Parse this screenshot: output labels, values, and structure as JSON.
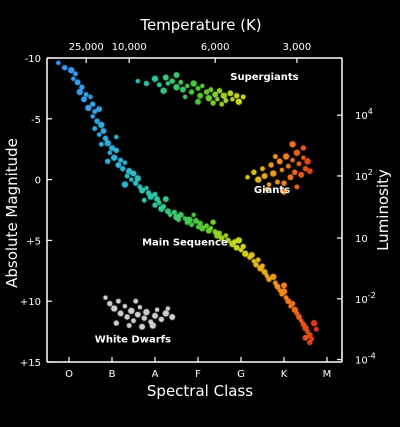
{
  "chart_data": {
    "type": "scatter",
    "title": "",
    "top_axis": {
      "label": "Temperature (K)",
      "ticks": [
        {
          "label": "25,000",
          "class_pos": 0.4
        },
        {
          "label": "10,000",
          "class_pos": 1.4
        },
        {
          "label": "6,000",
          "class_pos": 3.4
        },
        {
          "label": "3,000",
          "class_pos": 5.3
        }
      ]
    },
    "bottom_axis": {
      "label": "Spectral Class",
      "categories": [
        "O",
        "B",
        "A",
        "F",
        "G",
        "K",
        "M"
      ]
    },
    "left_axis": {
      "label": "Absolute Magnitude",
      "range": [
        -10,
        15
      ],
      "inverted": true,
      "ticks": [
        {
          "label": "-10",
          "value": -10
        },
        {
          "label": "-5",
          "value": -5
        },
        {
          "label": "0",
          "value": 0
        },
        {
          "label": "+5",
          "value": 5
        },
        {
          "label": "+10",
          "value": 10
        },
        {
          "label": "+15",
          "value": 15
        }
      ]
    },
    "right_axis": {
      "label": "Luminosity",
      "ticks": [
        {
          "base": "10",
          "exp": "4",
          "mag": -5.3
        },
        {
          "base": "10",
          "exp": "2",
          "mag": -0.3
        },
        {
          "base": "10",
          "exp": "",
          "mag": 4.8
        },
        {
          "base": "10",
          "exp": "-2",
          "mag": 9.8
        },
        {
          "base": "10",
          "exp": "-4",
          "mag": 14.8
        }
      ]
    },
    "grid": false,
    "legend": "none",
    "annotations": [
      {
        "text": "Supergiants",
        "x": 3.75,
        "y": -8.2
      },
      {
        "text": "Giants",
        "x": 4.3,
        "y": 1.1
      },
      {
        "text": "Main Sequence",
        "x": 1.7,
        "y": 5.4
      },
      {
        "text": "White Dwarfs",
        "x": 0.6,
        "y": 13.4
      }
    ],
    "class_colors": [
      "#3aa0ff",
      "#33b7e6",
      "#2fd0a8",
      "#4fd13a",
      "#e0e01a",
      "#ff8a1a",
      "#e0201a"
    ],
    "white_dwarf_color": "#d8d8d8",
    "groups": [
      {
        "name": "Main Sequence",
        "points": [
          [
            -0.25,
            -9.6
          ],
          [
            -0.1,
            -9.2
          ],
          [
            0.05,
            -9.0
          ],
          [
            0.15,
            -8.7
          ],
          [
            0.2,
            -8.0
          ],
          [
            0.1,
            -8.3
          ],
          [
            0.3,
            -7.6
          ],
          [
            0.25,
            -7.2
          ],
          [
            0.4,
            -7.0
          ],
          [
            0.35,
            -6.6
          ],
          [
            0.5,
            -6.8
          ],
          [
            0.55,
            -6.2
          ],
          [
            0.45,
            -5.9
          ],
          [
            0.6,
            -5.6
          ],
          [
            0.7,
            -5.8
          ],
          [
            0.55,
            -5.2
          ],
          [
            0.65,
            -4.8
          ],
          [
            0.75,
            -4.5
          ],
          [
            0.6,
            -4.2
          ],
          [
            0.8,
            -4.0
          ],
          [
            0.7,
            -3.7
          ],
          [
            0.85,
            -3.4
          ],
          [
            0.9,
            -3.0
          ],
          [
            0.75,
            -2.9
          ],
          [
            1.0,
            -2.6
          ],
          [
            0.95,
            -2.2
          ],
          [
            1.1,
            -2.4
          ],
          [
            1.05,
            -1.8
          ],
          [
            1.2,
            -1.6
          ],
          [
            1.15,
            -1.2
          ],
          [
            1.3,
            -1.4
          ],
          [
            1.25,
            -0.9
          ],
          [
            1.4,
            -0.7
          ],
          [
            1.35,
            -0.3
          ],
          [
            1.5,
            -0.5
          ],
          [
            1.45,
            0.0
          ],
          [
            1.55,
            0.3
          ],
          [
            1.6,
            -0.1
          ],
          [
            1.65,
            0.6
          ],
          [
            1.7,
            0.9
          ],
          [
            1.8,
            0.7
          ],
          [
            1.85,
            1.1
          ],
          [
            1.9,
            1.4
          ],
          [
            2.0,
            1.2
          ],
          [
            2.05,
            1.6
          ],
          [
            2.1,
            1.9
          ],
          [
            2.0,
            2.1
          ],
          [
            2.15,
            2.4
          ],
          [
            2.2,
            2.2
          ],
          [
            2.3,
            2.6
          ],
          [
            2.35,
            2.9
          ],
          [
            2.45,
            2.7
          ],
          [
            2.5,
            3.1
          ],
          [
            2.55,
            3.3
          ],
          [
            2.6,
            2.9
          ],
          [
            2.7,
            3.2
          ],
          [
            2.75,
            3.5
          ],
          [
            2.8,
            3.3
          ],
          [
            2.85,
            3.7
          ],
          [
            2.95,
            3.4
          ],
          [
            3.0,
            3.9
          ],
          [
            3.05,
            3.6
          ],
          [
            3.1,
            4.0
          ],
          [
            3.2,
            3.8
          ],
          [
            3.25,
            4.2
          ],
          [
            3.3,
            4.0
          ],
          [
            3.4,
            4.3
          ],
          [
            3.45,
            4.6
          ],
          [
            3.5,
            4.4
          ],
          [
            3.55,
            4.8
          ],
          [
            3.65,
            4.6
          ],
          [
            3.7,
            5.0
          ],
          [
            3.8,
            5.3
          ],
          [
            3.85,
            5.1
          ],
          [
            3.9,
            5.6
          ],
          [
            4.0,
            5.8
          ],
          [
            4.05,
            5.5
          ],
          [
            4.1,
            6.1
          ],
          [
            4.2,
            6.4
          ],
          [
            4.25,
            6.2
          ],
          [
            4.3,
            6.7
          ],
          [
            4.35,
            7.0
          ],
          [
            4.45,
            7.3
          ],
          [
            4.5,
            7.1
          ],
          [
            4.55,
            7.6
          ],
          [
            4.6,
            7.9
          ],
          [
            4.65,
            8.2
          ],
          [
            4.75,
            8.0
          ],
          [
            4.8,
            8.5
          ],
          [
            4.85,
            8.8
          ],
          [
            4.9,
            9.1
          ],
          [
            4.95,
            9.4
          ],
          [
            5.0,
            9.2
          ],
          [
            5.05,
            9.7
          ],
          [
            5.1,
            10.0
          ],
          [
            5.15,
            10.4
          ],
          [
            5.2,
            10.2
          ],
          [
            5.25,
            10.7
          ],
          [
            5.3,
            11.0
          ],
          [
            5.35,
            11.3
          ],
          [
            5.4,
            11.6
          ],
          [
            5.45,
            11.9
          ],
          [
            5.5,
            12.2
          ],
          [
            5.55,
            12.5
          ],
          [
            5.6,
            12.8
          ],
          [
            5.65,
            13.1
          ],
          [
            5.6,
            13.4
          ],
          [
            5.7,
            11.8
          ],
          [
            5.75,
            12.3
          ],
          [
            5.5,
            13.0
          ],
          [
            1.1,
            -3.5
          ],
          [
            0.9,
            -1.5
          ],
          [
            1.3,
            0.4
          ],
          [
            1.75,
            1.7
          ],
          [
            2.25,
            1.6
          ],
          [
            2.9,
            2.9
          ],
          [
            3.35,
            3.5
          ],
          [
            3.95,
            5.0
          ],
          [
            4.4,
            6.6
          ],
          [
            5.0,
            8.7
          ]
        ]
      },
      {
        "name": "Supergiants",
        "points": [
          [
            1.6,
            -8.1
          ],
          [
            1.8,
            -7.9
          ],
          [
            2.0,
            -8.3
          ],
          [
            2.1,
            -7.8
          ],
          [
            2.25,
            -8.4
          ],
          [
            2.3,
            -7.9
          ],
          [
            2.4,
            -8.1
          ],
          [
            2.5,
            -7.6
          ],
          [
            2.6,
            -8.0
          ],
          [
            2.65,
            -7.4
          ],
          [
            2.75,
            -7.7
          ],
          [
            2.85,
            -7.2
          ],
          [
            2.9,
            -7.9
          ],
          [
            3.0,
            -7.5
          ],
          [
            3.05,
            -6.9
          ],
          [
            3.1,
            -7.7
          ],
          [
            3.2,
            -7.2
          ],
          [
            3.25,
            -6.7
          ],
          [
            3.3,
            -7.4
          ],
          [
            3.4,
            -7.0
          ],
          [
            3.45,
            -6.6
          ],
          [
            3.5,
            -7.3
          ],
          [
            3.6,
            -6.9
          ],
          [
            3.65,
            -6.5
          ],
          [
            3.75,
            -7.1
          ],
          [
            3.8,
            -6.6
          ],
          [
            3.9,
            -6.9
          ],
          [
            3.95,
            -6.4
          ],
          [
            4.05,
            -6.8
          ],
          [
            3.0,
            -6.4
          ],
          [
            2.7,
            -6.8
          ],
          [
            3.35,
            -6.3
          ],
          [
            2.2,
            -7.3
          ],
          [
            3.55,
            -6.2
          ],
          [
            2.5,
            -8.6
          ]
        ]
      },
      {
        "name": "Giants",
        "points": [
          [
            4.15,
            -0.2
          ],
          [
            4.3,
            -0.6
          ],
          [
            4.4,
            0.0
          ],
          [
            4.5,
            -0.9
          ],
          [
            4.55,
            -0.3
          ],
          [
            4.65,
            0.4
          ],
          [
            4.7,
            -1.2
          ],
          [
            4.75,
            -0.5
          ],
          [
            4.85,
            0.2
          ],
          [
            4.9,
            -1.5
          ],
          [
            4.95,
            -0.8
          ],
          [
            5.0,
            0.3
          ],
          [
            5.05,
            -1.9
          ],
          [
            5.1,
            -1.1
          ],
          [
            5.15,
            -0.2
          ],
          [
            5.2,
            -1.6
          ],
          [
            5.25,
            -0.6
          ],
          [
            5.3,
            -2.2
          ],
          [
            5.35,
            -1.3
          ],
          [
            5.4,
            -0.4
          ],
          [
            5.45,
            -1.8
          ],
          [
            5.5,
            -0.9
          ],
          [
            5.55,
            -1.5
          ],
          [
            5.3,
            0.6
          ],
          [
            5.0,
            1.0
          ],
          [
            4.6,
            0.8
          ],
          [
            5.45,
            -2.6
          ],
          [
            5.2,
            -2.9
          ],
          [
            4.8,
            -1.9
          ],
          [
            5.6,
            -0.7
          ]
        ]
      },
      {
        "name": "White Dwarfs",
        "points": [
          [
            0.85,
            9.7
          ],
          [
            0.95,
            10.2
          ],
          [
            1.05,
            10.6
          ],
          [
            1.15,
            10.0
          ],
          [
            1.2,
            11.0
          ],
          [
            1.3,
            10.4
          ],
          [
            1.35,
            11.3
          ],
          [
            1.45,
            10.8
          ],
          [
            1.5,
            11.6
          ],
          [
            1.6,
            11.1
          ],
          [
            1.65,
            10.5
          ],
          [
            1.75,
            11.4
          ],
          [
            1.8,
            10.9
          ],
          [
            1.9,
            11.7
          ],
          [
            2.0,
            11.2
          ],
          [
            2.05,
            10.7
          ],
          [
            2.15,
            11.5
          ],
          [
            2.25,
            11.0
          ],
          [
            1.4,
            12.0
          ],
          [
            1.7,
            12.1
          ],
          [
            2.3,
            10.6
          ],
          [
            1.1,
            11.8
          ],
          [
            1.95,
            12.0
          ],
          [
            1.55,
            10.0
          ],
          [
            2.4,
            11.3
          ]
        ]
      }
    ]
  }
}
